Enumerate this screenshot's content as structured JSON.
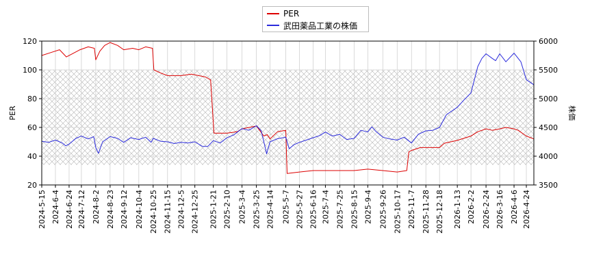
{
  "chart_data": {
    "type": "line",
    "x_type": "date",
    "x_tick_labels": [
      "2024-5-15",
      "2024-6-4",
      "2024-6-24",
      "2024-7-12",
      "2024-8-2",
      "2024-8-23",
      "2024-9-12",
      "2024-10-4",
      "2024-10-25",
      "2024-11-15",
      "2024-12-5",
      "2024-12-25",
      "2025-1-21",
      "2025-2-10",
      "2025-3-4",
      "2025-3-25",
      "2025-4-14",
      "2025-5-7",
      "2025-5-27",
      "2025-6-16",
      "2025-7-4",
      "2025-7-25",
      "2025-8-15",
      "2025-9-4",
      "2025-9-26",
      "2025-10-17",
      "2025-11-7",
      "2025-11-28",
      "2025-12-18",
      "2026-1-13",
      "2026-2-2",
      "2026-2-24",
      "2026-3-16",
      "2026-4-6",
      "2026-4-24"
    ],
    "xlim": [
      "2024-5-15",
      "2026-5-5"
    ],
    "y_left": {
      "label": "PER",
      "ticks": [
        "20",
        "40",
        "60",
        "80",
        "100",
        "120"
      ],
      "lim": [
        20,
        120
      ]
    },
    "y_right": {
      "label": "株価",
      "ticks": [
        "3500",
        "4000",
        "4500",
        "5000",
        "5500",
        "6000"
      ],
      "lim": [
        3500,
        6000
      ]
    },
    "hatch_band": [
      34,
      100
    ],
    "grid": true,
    "legend_position": "top-center",
    "series": [
      {
        "name": "PER",
        "axis": "left",
        "color": "#dd0000",
        "points": [
          [
            "2024-5-15",
            110
          ],
          [
            "2024-5-28",
            112
          ],
          [
            "2024-6-10",
            114
          ],
          [
            "2024-6-20",
            109
          ],
          [
            "2024-6-28",
            111
          ],
          [
            "2024-7-10",
            114
          ],
          [
            "2024-7-22",
            116
          ],
          [
            "2024-7-31",
            115
          ],
          [
            "2024-8-2",
            107
          ],
          [
            "2024-8-8",
            113
          ],
          [
            "2024-8-15",
            117
          ],
          [
            "2024-8-23",
            119
          ],
          [
            "2024-9-3",
            117
          ],
          [
            "2024-9-12",
            114
          ],
          [
            "2024-9-25",
            115
          ],
          [
            "2024-10-4",
            114
          ],
          [
            "2024-10-14",
            116
          ],
          [
            "2024-10-24",
            115
          ],
          [
            "2024-10-26",
            100
          ],
          [
            "2024-11-4",
            98
          ],
          [
            "2024-11-15",
            96
          ],
          [
            "2024-12-5",
            96
          ],
          [
            "2024-12-20",
            97
          ],
          [
            "2025-1-10",
            95
          ],
          [
            "2025-1-17",
            93
          ],
          [
            "2025-1-22",
            56
          ],
          [
            "2025-2-10",
            56
          ],
          [
            "2025-2-25",
            57
          ],
          [
            "2025-3-4",
            59
          ],
          [
            "2025-3-25",
            61
          ],
          [
            "2025-4-5",
            54
          ],
          [
            "2025-4-10",
            55
          ],
          [
            "2025-4-14",
            52
          ],
          [
            "2025-4-25",
            57
          ],
          [
            "2025-5-7",
            58
          ],
          [
            "2025-5-9",
            28
          ],
          [
            "2025-5-27",
            29
          ],
          [
            "2025-6-16",
            30
          ],
          [
            "2025-7-4",
            30
          ],
          [
            "2025-7-25",
            30
          ],
          [
            "2025-8-15",
            30
          ],
          [
            "2025-9-4",
            31
          ],
          [
            "2025-9-26",
            30
          ],
          [
            "2025-10-17",
            29
          ],
          [
            "2025-10-31",
            30
          ],
          [
            "2025-11-3",
            43
          ],
          [
            "2025-11-7",
            44
          ],
          [
            "2025-11-20",
            46
          ],
          [
            "2025-11-28",
            46
          ],
          [
            "2025-12-18",
            46
          ],
          [
            "2025-12-25",
            49
          ],
          [
            "2026-1-13",
            51
          ],
          [
            "2026-2-2",
            54
          ],
          [
            "2026-2-12",
            57
          ],
          [
            "2026-2-24",
            59
          ],
          [
            "2026-3-5",
            58
          ],
          [
            "2026-3-16",
            59
          ],
          [
            "2026-3-25",
            60
          ],
          [
            "2026-4-6",
            59
          ],
          [
            "2026-4-12",
            58
          ],
          [
            "2026-4-24",
            54
          ],
          [
            "2026-5-5",
            52
          ]
        ]
      },
      {
        "name": "武田薬品工業の株価",
        "axis": "right",
        "color": "#2a2adc",
        "points": [
          [
            "2024-5-15",
            4260
          ],
          [
            "2024-5-25",
            4240
          ],
          [
            "2024-6-4",
            4280
          ],
          [
            "2024-6-14",
            4230
          ],
          [
            "2024-6-19",
            4180
          ],
          [
            "2024-6-24",
            4210
          ],
          [
            "2024-7-4",
            4310
          ],
          [
            "2024-7-12",
            4350
          ],
          [
            "2024-7-22",
            4300
          ],
          [
            "2024-7-30",
            4340
          ],
          [
            "2024-8-2",
            4150
          ],
          [
            "2024-8-6",
            4050
          ],
          [
            "2024-8-12",
            4250
          ],
          [
            "2024-8-23",
            4340
          ],
          [
            "2024-9-3",
            4310
          ],
          [
            "2024-9-12",
            4240
          ],
          [
            "2024-9-22",
            4320
          ],
          [
            "2024-10-4",
            4290
          ],
          [
            "2024-10-14",
            4330
          ],
          [
            "2024-10-22",
            4240
          ],
          [
            "2024-10-25",
            4310
          ],
          [
            "2024-11-5",
            4260
          ],
          [
            "2024-11-15",
            4250
          ],
          [
            "2024-11-25",
            4220
          ],
          [
            "2024-12-5",
            4240
          ],
          [
            "2024-12-15",
            4230
          ],
          [
            "2024-12-25",
            4250
          ],
          [
            "2025-1-5",
            4170
          ],
          [
            "2025-1-13",
            4170
          ],
          [
            "2025-1-21",
            4270
          ],
          [
            "2025-1-31",
            4230
          ],
          [
            "2025-2-10",
            4320
          ],
          [
            "2025-2-20",
            4370
          ],
          [
            "2025-3-4",
            4480
          ],
          [
            "2025-3-14",
            4450
          ],
          [
            "2025-3-25",
            4530
          ],
          [
            "2025-4-1",
            4440
          ],
          [
            "2025-4-7",
            4150
          ],
          [
            "2025-4-9",
            4040
          ],
          [
            "2025-4-14",
            4250
          ],
          [
            "2025-4-24",
            4300
          ],
          [
            "2025-5-7",
            4330
          ],
          [
            "2025-5-12",
            4130
          ],
          [
            "2025-5-19",
            4200
          ],
          [
            "2025-5-27",
            4240
          ],
          [
            "2025-6-6",
            4280
          ],
          [
            "2025-6-16",
            4320
          ],
          [
            "2025-6-26",
            4360
          ],
          [
            "2025-7-4",
            4420
          ],
          [
            "2025-7-14",
            4350
          ],
          [
            "2025-7-25",
            4380
          ],
          [
            "2025-8-4",
            4290
          ],
          [
            "2025-8-15",
            4310
          ],
          [
            "2025-8-25",
            4450
          ],
          [
            "2025-9-4",
            4420
          ],
          [
            "2025-9-10",
            4510
          ],
          [
            "2025-9-16",
            4430
          ],
          [
            "2025-9-26",
            4330
          ],
          [
            "2025-10-6",
            4300
          ],
          [
            "2025-10-17",
            4280
          ],
          [
            "2025-10-27",
            4330
          ],
          [
            "2025-11-7",
            4230
          ],
          [
            "2025-11-17",
            4380
          ],
          [
            "2025-11-28",
            4440
          ],
          [
            "2025-12-8",
            4450
          ],
          [
            "2025-12-18",
            4500
          ],
          [
            "2025-12-28",
            4720
          ],
          [
            "2026-1-13",
            4850
          ],
          [
            "2026-1-23",
            4980
          ],
          [
            "2026-2-2",
            5100
          ],
          [
            "2026-2-12",
            5560
          ],
          [
            "2026-2-18",
            5700
          ],
          [
            "2026-2-24",
            5780
          ],
          [
            "2026-3-5",
            5700
          ],
          [
            "2026-3-10",
            5660
          ],
          [
            "2026-3-16",
            5780
          ],
          [
            "2026-3-25",
            5640
          ],
          [
            "2026-4-6",
            5790
          ],
          [
            "2026-4-16",
            5640
          ],
          [
            "2026-4-24",
            5330
          ],
          [
            "2026-5-5",
            5240
          ]
        ]
      }
    ]
  }
}
